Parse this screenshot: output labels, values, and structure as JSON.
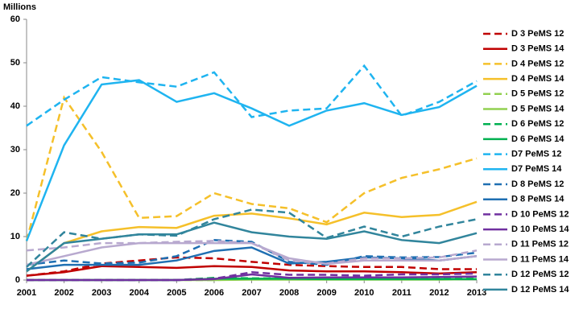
{
  "chart_data": {
    "type": "line",
    "y_label": "Millions",
    "categories": [
      "2001",
      "2002",
      "2003",
      "2004",
      "2005",
      "2006",
      "2007",
      "2008",
      "2009",
      "2010",
      "2011",
      "2012",
      "2013"
    ],
    "ylim": [
      0,
      60
    ],
    "yticks": [
      0,
      10,
      20,
      30,
      40,
      50,
      60
    ],
    "grid": false,
    "legend": "right",
    "series": [
      {
        "name": "D 3 PeMS 12",
        "color": "#c00000",
        "dash": true,
        "values": [
          1,
          2,
          3.8,
          4.5,
          5.2,
          5,
          4.2,
          3.5,
          3.2,
          3,
          3,
          2.5,
          2.5
        ]
      },
      {
        "name": "D 3 PeMS 14",
        "color": "#c00000",
        "dash": false,
        "values": [
          1,
          1.8,
          3.2,
          3,
          2.8,
          3.2,
          3,
          2.2,
          2,
          2,
          1.8,
          1.5,
          1.8
        ]
      },
      {
        "name": "D 4 PeMS 12",
        "color": "#f5c02a",
        "dash": true,
        "values": [
          9,
          42,
          29.5,
          14.3,
          14.7,
          20,
          17.5,
          16.5,
          13.3,
          20,
          23.5,
          25.5,
          28
        ]
      },
      {
        "name": "D 4 PeMS 14",
        "color": "#f5c02a",
        "dash": false,
        "values": [
          2,
          8.5,
          11.2,
          12.2,
          12,
          14.8,
          15.3,
          14.2,
          12.8,
          15.5,
          14.5,
          15,
          18
        ]
      },
      {
        "name": "D 5 PeMS 12",
        "color": "#92d050",
        "dash": true,
        "values": [
          0,
          0,
          0,
          0,
          0,
          0,
          0.2,
          0.2,
          0.2,
          0.2,
          0.2,
          0.2,
          0.3
        ]
      },
      {
        "name": "D 5 PeMS 14",
        "color": "#92d050",
        "dash": false,
        "values": [
          0,
          0,
          0,
          0,
          0,
          0,
          0.1,
          0.1,
          0.1,
          0.1,
          0.1,
          0.1,
          0.2
        ]
      },
      {
        "name": "D 6 PeMS 12",
        "color": "#00b050",
        "dash": true,
        "values": [
          0,
          0,
          0,
          0,
          0,
          0.5,
          0.4,
          0.4,
          0.3,
          0.3,
          0.3,
          0.3,
          0.3
        ]
      },
      {
        "name": "D 6 PeMS 14",
        "color": "#00b050",
        "dash": false,
        "values": [
          0,
          0,
          0,
          0,
          0,
          0.3,
          0.3,
          0.3,
          0.2,
          0.2,
          0.2,
          0.2,
          0.2
        ]
      },
      {
        "name": "D7 PeMS 12",
        "color": "#1fb4f0",
        "dash": true,
        "values": [
          35.5,
          41.5,
          46.7,
          45.5,
          44.5,
          47.8,
          37.5,
          39,
          39.5,
          49.3,
          37.8,
          41,
          45.8
        ]
      },
      {
        "name": "D7 PeMS 14",
        "color": "#1fb4f0",
        "dash": false,
        "values": [
          9,
          31,
          45,
          46,
          41,
          43,
          39.5,
          35.5,
          39,
          40.7,
          38,
          39.8,
          44.7
        ]
      },
      {
        "name": "D 8 PeMS 12",
        "color": "#1f6fb2",
        "dash": true,
        "values": [
          3.5,
          4.5,
          3.8,
          4,
          5.5,
          9.2,
          8.8,
          4.2,
          3.5,
          5.5,
          5.2,
          5.3,
          6.3
        ]
      },
      {
        "name": "D 8 PeMS 14",
        "color": "#1f6fb2",
        "dash": false,
        "values": [
          2.5,
          3.5,
          3.5,
          3.5,
          4.5,
          6.7,
          7.5,
          3.8,
          4.2,
          5.2,
          5,
          4.5,
          5.5
        ]
      },
      {
        "name": "D 10 PeMS 12",
        "color": "#7030a0",
        "dash": true,
        "values": [
          0,
          0,
          0,
          0,
          0,
          0.3,
          1.8,
          1.2,
          1.2,
          1,
          1.3,
          1.3,
          1.5
        ]
      },
      {
        "name": "D 10 PeMS 14",
        "color": "#7030a0",
        "dash": false,
        "values": [
          0,
          0,
          0,
          0,
          0,
          0.2,
          1.3,
          0.5,
          0.6,
          0.6,
          0.6,
          0.7,
          0.8
        ]
      },
      {
        "name": "D 11 PeMS 12",
        "color": "#b8a9cf",
        "dash": true,
        "values": [
          6.8,
          7.5,
          8.5,
          8.5,
          8.8,
          9,
          8.5,
          4.5,
          3.8,
          5,
          5,
          5.2,
          6.8
        ]
      },
      {
        "name": "D 11 PeMS 14",
        "color": "#b8a9cf",
        "dash": false,
        "values": [
          3.5,
          5.5,
          7.5,
          8.5,
          8.5,
          8.5,
          8.5,
          5,
          3.7,
          4.5,
          4.5,
          4.5,
          5.5
        ]
      },
      {
        "name": "D 12 PeMS 12",
        "color": "#31859c",
        "dash": true,
        "values": [
          3,
          11,
          9.5,
          10.5,
          10.2,
          14,
          16.2,
          15.5,
          9.7,
          12.3,
          10,
          12.3,
          14
        ]
      },
      {
        "name": "D 12 PeMS 14",
        "color": "#31859c",
        "dash": false,
        "values": [
          2,
          8.5,
          9.5,
          10.5,
          10.5,
          13.2,
          11,
          10,
          9.5,
          11.2,
          9.2,
          8.5,
          10.8
        ]
      }
    ]
  }
}
